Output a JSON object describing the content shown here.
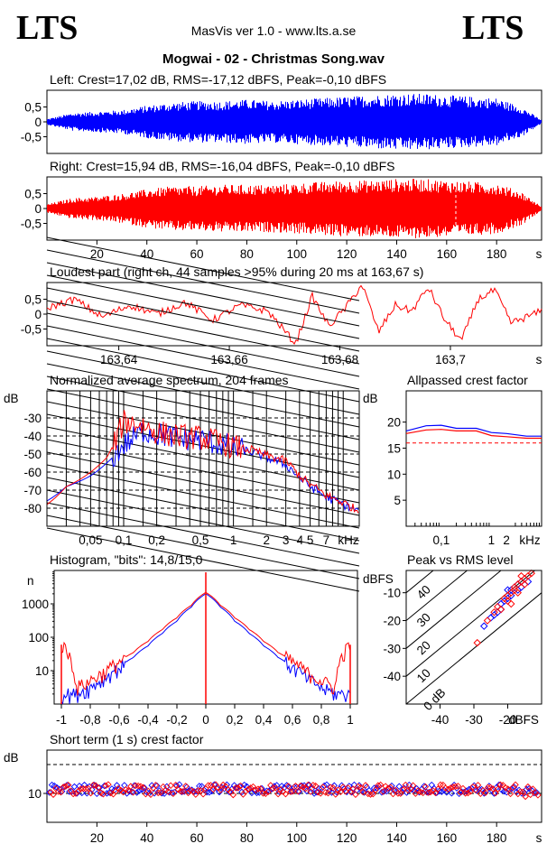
{
  "header": {
    "logo_left": "LTS",
    "logo_right": "LTS",
    "app_title": "MasVis ver 1.0 - www.lts.a.se",
    "file_title": "Mogwai - 02 - Christmas Song.wav"
  },
  "colors": {
    "left": "#0000ff",
    "right": "#ff0000",
    "axis": "#000000"
  },
  "chart_data": [
    {
      "id": "left-waveform",
      "type": "area",
      "title": "Left: Crest=17,02 dB, RMS=-17,12 dBFS, Peak=-0,10 dBFS",
      "ylim": [
        -1,
        1
      ],
      "yticks": [
        "0,5",
        "0",
        "-0,5"
      ],
      "x": [
        0,
        10,
        20,
        30,
        40,
        50,
        60,
        70,
        80,
        90,
        100,
        110,
        120,
        130,
        140,
        150,
        160,
        170,
        180,
        190,
        198
      ],
      "envelope": [
        0.1,
        0.3,
        0.35,
        0.4,
        0.55,
        0.65,
        0.7,
        0.7,
        0.75,
        0.7,
        0.75,
        0.8,
        0.85,
        0.9,
        0.95,
        0.95,
        0.9,
        0.85,
        0.8,
        0.5,
        0.05
      ],
      "series": [
        {
          "color": "#0000ff"
        }
      ]
    },
    {
      "id": "right-waveform",
      "type": "area",
      "title": "Right: Crest=15,94 dB, RMS=-16,04 dBFS, Peak=-0,10 dBFS",
      "ylim": [
        -1,
        1
      ],
      "yticks": [
        "0,5",
        "0",
        "-0,5"
      ],
      "x": [
        0,
        10,
        20,
        30,
        40,
        50,
        60,
        70,
        80,
        90,
        100,
        110,
        120,
        130,
        140,
        150,
        160,
        170,
        180,
        190,
        198
      ],
      "envelope": [
        0.15,
        0.35,
        0.4,
        0.5,
        0.65,
        0.75,
        0.75,
        0.8,
        0.8,
        0.8,
        0.85,
        0.9,
        0.95,
        0.95,
        1.0,
        1.0,
        0.95,
        0.9,
        0.85,
        0.55,
        0.05
      ],
      "xticks": [
        "20",
        "40",
        "60",
        "80",
        "100",
        "120",
        "140",
        "160",
        "180"
      ],
      "xunit": "s",
      "marker_x": 163.67,
      "series": [
        {
          "color": "#ff0000"
        }
      ]
    },
    {
      "id": "loudest-part",
      "type": "line",
      "title": "Loudest part (right ch, 44 samples >95% during 20 ms at 163,67 s)",
      "xlim": [
        163.627,
        163.7165
      ],
      "ylim": [
        -1,
        1
      ],
      "yticks": [
        "0,5",
        "0",
        "-0,5"
      ],
      "xticks": [
        "163,64",
        "163,66",
        "163,68",
        "163,7"
      ],
      "xunit": "s",
      "x": [
        163.627,
        163.632,
        163.637,
        163.642,
        163.647,
        163.652,
        163.657,
        163.662,
        163.667,
        163.672,
        163.675,
        163.678,
        163.681,
        163.684,
        163.687,
        163.69,
        163.693,
        163.696,
        163.699,
        163.702,
        163.705,
        163.708,
        163.711,
        163.7165
      ],
      "values": [
        0.2,
        0.5,
        -0.1,
        0.3,
        0.0,
        0.4,
        -0.2,
        0.3,
        0.1,
        -1.0,
        0.6,
        -0.4,
        0.2,
        1.0,
        -0.6,
        0.3,
        0.1,
        0.9,
        -0.2,
        -0.9,
        0.5,
        0.8,
        -0.3,
        0.1
      ],
      "series": [
        {
          "color": "#ff0000"
        }
      ]
    },
    {
      "id": "avg-spectrum",
      "type": "line",
      "title": "Normalized average spectrum, 204 frames",
      "ylabel": "dB",
      "xunit": "kHz",
      "ylim": [
        -90,
        -15
      ],
      "yticks": [
        "-30",
        "-40",
        "-50",
        "-60",
        "-70",
        "-80"
      ],
      "xticks": [
        "0,05",
        "0,1",
        "0,2",
        "0,5",
        "1",
        "2",
        "3",
        "4 5",
        "7"
      ],
      "x": [
        0.02,
        0.03,
        0.05,
        0.07,
        0.1,
        0.15,
        0.2,
        0.3,
        0.5,
        0.7,
        1,
        1.5,
        2,
        3,
        4,
        5,
        7,
        10,
        14
      ],
      "series": [
        {
          "color": "#0000ff",
          "values": [
            -76,
            -68,
            -62,
            -55,
            -45,
            -37,
            -39,
            -41,
            -42,
            -44,
            -47,
            -49,
            -52,
            -56,
            -63,
            -68,
            -74,
            -78,
            -82
          ]
        },
        {
          "color": "#ff0000",
          "values": [
            -78,
            -68,
            -60,
            -52,
            -32,
            -34,
            -38,
            -40,
            -41,
            -43,
            -46,
            -48,
            -51,
            -54,
            -62,
            -67,
            -73,
            -77,
            -82
          ]
        }
      ]
    },
    {
      "id": "allpassed-crest",
      "type": "line",
      "title": "Allpassed crest factor",
      "ylabel": "dB",
      "xunit": "kHz",
      "ylim": [
        0,
        26
      ],
      "yticks": [
        "20",
        "15",
        "10",
        "5"
      ],
      "xticks": [
        "0,1",
        "1",
        "2"
      ],
      "x": [
        0.02,
        0.05,
        0.1,
        0.2,
        0.5,
        1,
        2,
        5,
        10
      ],
      "reference_db": 16.0,
      "series": [
        {
          "color": "#0000ff",
          "values": [
            18.3,
            19.3,
            19.4,
            18.8,
            18.8,
            18.0,
            17.8,
            17.3,
            17.3
          ]
        },
        {
          "color": "#ff0000",
          "values": [
            17.8,
            18.5,
            18.6,
            18.3,
            18.3,
            17.4,
            17.2,
            16.9,
            16.9
          ]
        }
      ]
    },
    {
      "id": "histogram",
      "type": "line",
      "title": "Histogram, \"bits\": 14,8/15,0",
      "ylabel": "n",
      "yticks": [
        "1000",
        "100",
        "10"
      ],
      "xticks": [
        "-1",
        "-0,8",
        "-0,6",
        "-0,4",
        "-0,2",
        "0",
        "0,2",
        "0,4",
        "0,6",
        "0,8",
        "1"
      ],
      "x": [
        -1,
        -0.9,
        -0.8,
        -0.7,
        -0.6,
        -0.5,
        -0.4,
        -0.3,
        -0.2,
        -0.1,
        0,
        0.1,
        0.2,
        0.3,
        0.4,
        0.5,
        0.6,
        0.7,
        0.8,
        0.9,
        1
      ],
      "series": [
        {
          "color": "#0000ff",
          "values": [
            2,
            2,
            3,
            6,
            12,
            25,
            55,
            130,
            300,
            800,
            2000,
            800,
            300,
            130,
            55,
            25,
            12,
            6,
            3,
            2,
            2
          ]
        },
        {
          "color": "#ff0000",
          "values": [
            60,
            3,
            5,
            9,
            18,
            35,
            75,
            170,
            380,
            900,
            2200,
            900,
            380,
            170,
            75,
            35,
            18,
            9,
            5,
            3,
            60
          ]
        }
      ]
    },
    {
      "id": "peak-vs-rms",
      "type": "scatter",
      "title": "Peak vs RMS level",
      "ylabel": "dBFS",
      "xunit": "dBFS",
      "xlim": [
        -50,
        -10
      ],
      "ylim": [
        -50,
        -2
      ],
      "yticks": [
        "-10",
        "-20",
        "-30",
        "-40"
      ],
      "xticks": [
        "-40",
        "-30",
        "-20"
      ],
      "crest_lines": [
        "40",
        "30",
        "20",
        "10",
        "0 dB"
      ],
      "series": [
        {
          "color": "#0000ff",
          "x": [
            -27,
            -25,
            -24,
            -22,
            -21,
            -20,
            -19,
            -19,
            -18,
            -17,
            -16,
            -15,
            -20,
            -22,
            -23,
            -17,
            -16,
            -14
          ],
          "y": [
            -22,
            -19,
            -18,
            -16,
            -13,
            -12,
            -11,
            -9,
            -8,
            -7,
            -6,
            -5,
            -9,
            -14,
            -17,
            -9,
            -8,
            -6
          ]
        },
        {
          "color": "#ff0000",
          "x": [
            -29,
            -26,
            -24,
            -23,
            -21,
            -20,
            -19,
            -18,
            -17,
            -16,
            -15,
            -14,
            -13,
            -18,
            -20,
            -22,
            -16,
            -15,
            -17,
            -19
          ],
          "y": [
            -28,
            -20,
            -17,
            -15,
            -12,
            -11,
            -10,
            -8,
            -7,
            -6,
            -5,
            -4,
            -3,
            -9,
            -13,
            -16,
            -4,
            -7,
            -10,
            -14
          ]
        }
      ]
    },
    {
      "id": "short-term-crest",
      "type": "scatter",
      "title": "Short term (1 s) crest factor",
      "ylabel": "dB",
      "ylim": [
        0,
        25
      ],
      "yticks": [
        "10"
      ],
      "dashed_levels": [
        10,
        20
      ],
      "xticks": [
        "20",
        "40",
        "60",
        "80",
        "100",
        "120",
        "140",
        "160",
        "180"
      ],
      "xunit": "s",
      "series": [
        {
          "color": "#0000ff",
          "mean": 11.5,
          "jitter": 1.6
        },
        {
          "color": "#ff0000",
          "mean": 11.3,
          "jitter": 1.8
        }
      ]
    }
  ]
}
